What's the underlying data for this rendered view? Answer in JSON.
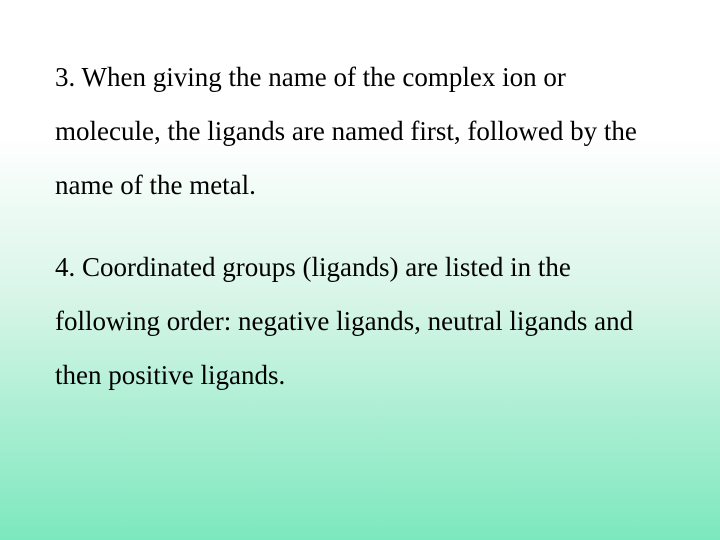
{
  "slide": {
    "background_gradient": {
      "top": "#ffffff",
      "mid": "#d8f5e8",
      "bottom": "#7ce8bd"
    },
    "font_family": "Times New Roman",
    "font_size_pt": 20,
    "text_color": "#000000",
    "paragraphs": [
      "3. When giving the name of the complex ion or molecule, the ligands are named first, followed by the name of the metal.",
      "4. Coordinated groups (ligands) are listed in the following order: negative ligands, neutral ligands and then positive ligands."
    ]
  }
}
